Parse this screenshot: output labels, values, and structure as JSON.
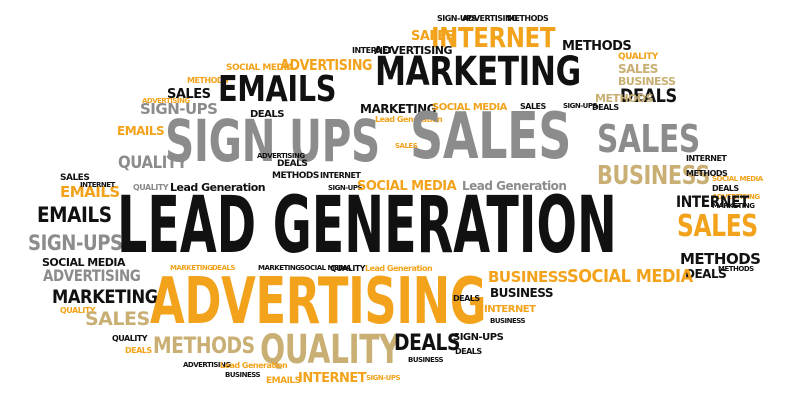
{
  "cloud": {
    "center_phrase": "LEAD GENERATION",
    "words": [
      {
        "id": "w01",
        "text": "SIGN-UPS"
      },
      {
        "id": "w02",
        "text": "ADVERTISING"
      },
      {
        "id": "w03",
        "text": "METHODS"
      },
      {
        "id": "w04",
        "text": "SALES"
      },
      {
        "id": "w05",
        "text": "INTERNET"
      },
      {
        "id": "w06",
        "text": "INTERNET"
      },
      {
        "id": "w07",
        "text": "ADVERTISING"
      },
      {
        "id": "w08",
        "text": "METHODS"
      },
      {
        "id": "w09",
        "text": "QUALITY"
      },
      {
        "id": "w10",
        "text": "SALES"
      },
      {
        "id": "w11",
        "text": "SOCIAL MEDIA"
      },
      {
        "id": "w12",
        "text": "ADVERTISING"
      },
      {
        "id": "w13",
        "text": "MARKETING"
      },
      {
        "id": "w14",
        "text": "BUSINESS"
      },
      {
        "id": "w15",
        "text": "METHODS"
      },
      {
        "id": "w16",
        "text": "EMAILS"
      },
      {
        "id": "w17",
        "text": "DEALS"
      },
      {
        "id": "w18",
        "text": "METHODS"
      },
      {
        "id": "w19",
        "text": "SALES"
      },
      {
        "id": "w20",
        "text": "MARKETING"
      },
      {
        "id": "w21",
        "text": "SOCIAL MEDIA"
      },
      {
        "id": "w22",
        "text": "SIGN-UPS"
      },
      {
        "id": "w23",
        "text": "Lead Generation"
      },
      {
        "id": "w24",
        "text": "SIGN-UPS"
      },
      {
        "id": "w25",
        "text": "SALES"
      },
      {
        "id": "w26",
        "text": "ADVERTISING"
      },
      {
        "id": "w27",
        "text": "DEALS"
      },
      {
        "id": "w28",
        "text": "EMAILS"
      },
      {
        "id": "w29",
        "text": "SIGN UPS"
      },
      {
        "id": "w30",
        "text": "SALES"
      },
      {
        "id": "w31",
        "text": "DEALS"
      },
      {
        "id": "w32",
        "text": "QUALITY"
      },
      {
        "id": "w33",
        "text": "ADVERTISING"
      },
      {
        "id": "w34",
        "text": "DEALS"
      },
      {
        "id": "w35",
        "text": "SALES"
      },
      {
        "id": "w36",
        "text": "METHODS"
      },
      {
        "id": "w37",
        "text": "INTERNET"
      },
      {
        "id": "w38",
        "text": "QUALITY"
      },
      {
        "id": "w39",
        "text": "Lead Generation"
      },
      {
        "id": "w40",
        "text": "SIGN-UPS"
      },
      {
        "id": "w41",
        "text": "SOCIAL MEDIA"
      },
      {
        "id": "w42",
        "text": "Lead Generation"
      },
      {
        "id": "w43",
        "text": "BUSINESS"
      },
      {
        "id": "w44",
        "text": "SALES"
      },
      {
        "id": "w45",
        "text": "INTERNET"
      },
      {
        "id": "w46",
        "text": "EMAILS"
      },
      {
        "id": "w47",
        "text": "EMAILS"
      },
      {
        "id": "w48",
        "text": "INTERNET"
      },
      {
        "id": "w49",
        "text": "SALES"
      },
      {
        "id": "w50",
        "text": "SIGN-UPS"
      },
      {
        "id": "w51",
        "text": "METHODS"
      },
      {
        "id": "w52",
        "text": "SOCIAL MEDIA"
      },
      {
        "id": "w53",
        "text": "DEALS"
      },
      {
        "id": "w54",
        "text": "ADVERTISING"
      },
      {
        "id": "w55",
        "text": "MARKETING"
      },
      {
        "id": "w56",
        "text": "ADVERTISING"
      },
      {
        "id": "w57",
        "text": "SOCIAL MEDIA"
      },
      {
        "id": "w58",
        "text": "INTERNET"
      },
      {
        "id": "w59",
        "text": "Lead Generation"
      },
      {
        "id": "w60",
        "text": "MARKETING"
      },
      {
        "id": "w61",
        "text": "BUSINESS"
      },
      {
        "id": "w62",
        "text": "SOCIAL MEDIA"
      },
      {
        "id": "w63",
        "text": "BUSINESS"
      },
      {
        "id": "w64",
        "text": "QUALITY"
      },
      {
        "id": "w65",
        "text": "SALES"
      },
      {
        "id": "w66",
        "text": "INTERNET"
      },
      {
        "id": "w67",
        "text": "BUSINESS"
      },
      {
        "id": "w68",
        "text": "QUALITY"
      },
      {
        "id": "w69",
        "text": "DEALS"
      },
      {
        "id": "w70",
        "text": "METHODS"
      },
      {
        "id": "w71",
        "text": "QUALITY"
      },
      {
        "id": "w72",
        "text": "DEALS"
      },
      {
        "id": "w73",
        "text": "SIGN-UPS"
      },
      {
        "id": "w74",
        "text": "ADVERTISING"
      },
      {
        "id": "w75",
        "text": "Lead Generation"
      },
      {
        "id": "w76",
        "text": "BUSINESS"
      },
      {
        "id": "w77",
        "text": "DEALS"
      },
      {
        "id": "w78",
        "text": "EMAILS"
      },
      {
        "id": "w79",
        "text": "INTERNET"
      },
      {
        "id": "w80",
        "text": "SIGN-UPS"
      },
      {
        "id": "w81",
        "text": "BUSINESS"
      }
    ],
    "colors": {
      "black": "#111111",
      "orange": "#F2A31B",
      "gray": "#8C8C8C",
      "tan": "#C9AF73",
      "background": "#FFFFFF"
    }
  }
}
